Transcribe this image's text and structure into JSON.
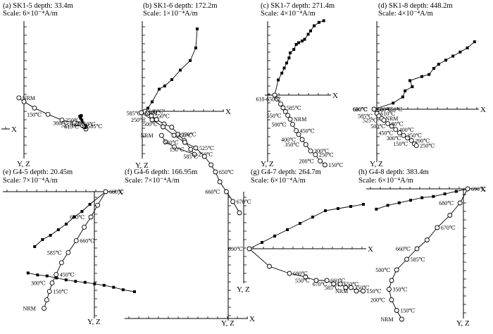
{
  "figure": {
    "description_label": "Orthogonal vector (Zijderveld) diagrams of thermal demagnetization",
    "axis_x": "X",
    "axis_yz": "Y, Z"
  },
  "chart_data": [
    {
      "type": "scatter",
      "panel": "(a)",
      "title": "(a) SK1-5 depth: 33.4m",
      "scale": "Scale: 6×10⁻⁴A/m",
      "xlabel": "X",
      "ylabel": "Y, Z",
      "horizontal_projection": [
        [
          0.0,
          0.0
        ],
        [
          0.06,
          0.18
        ],
        [
          0.16,
          0.3
        ],
        [
          0.3,
          0.45
        ],
        [
          0.38,
          0.65
        ],
        [
          0.49,
          0.8
        ],
        [
          0.44,
          1.0
        ],
        [
          0.58,
          0.95
        ]
      ],
      "vertical_projection": [
        [
          0.0,
          0.0
        ],
        [
          0.05,
          0.55
        ],
        [
          0.13,
          0.6
        ],
        [
          0.19,
          0.63
        ],
        [
          0.23,
          0.66
        ],
        [
          0.28,
          0.7
        ],
        [
          0.38,
          0.9
        ],
        [
          0.72,
          1.2
        ],
        [
          0.89,
          1.2
        ],
        [
          1.0,
          1.3
        ],
        [
          1.19,
          1.45
        ],
        [
          2.43,
          2.1
        ],
        [
          3.85,
          3.45
        ],
        [
          5.22,
          4.95
        ],
        [
          6.28,
          6.45
        ],
        [
          6.8,
          7.35
        ]
      ],
      "temperature_labels": [
        {
          "label": "NRM",
          "index": 15
        },
        {
          "label": "150℃",
          "index": 12
        },
        {
          "label": "250℃",
          "index": 11
        },
        {
          "label": "300℃",
          "index": 10
        },
        {
          "label": "450℃",
          "index": 8
        },
        {
          "label": "525℃",
          "index": 6
        },
        {
          "label": "585℃",
          "index": 3
        },
        {
          "label": "610℃",
          "index": 1
        }
      ]
    },
    {
      "type": "scatter",
      "panel": "(b)",
      "title": "(b) SK1-6 depth: 172.2m",
      "scale": "Scale: 1×10⁻⁴A/m",
      "xlabel": "X",
      "ylabel": "Y, Z",
      "horizontal_projection": [
        [
          0.0,
          0.0
        ],
        [
          0.2,
          0.1
        ],
        [
          0.5,
          0.3
        ],
        [
          1.0,
          0.7
        ],
        [
          1.4,
          0.8
        ],
        [
          1.9,
          1.0
        ],
        [
          2.5,
          1.3
        ],
        [
          3.2,
          1.6
        ],
        [
          3.6,
          2.0
        ],
        [
          3.7,
          2.6
        ]
      ],
      "vertical_projection": [
        [
          0.0,
          0.0
        ],
        [
          0.2,
          0.3
        ],
        [
          0.5,
          0.7
        ],
        [
          0.9,
          1.3
        ],
        [
          1.5,
          2.0
        ],
        [
          2.1,
          2.5
        ],
        [
          2.6,
          3.6
        ],
        [
          3.1,
          4.6
        ],
        [
          3.6,
          6.0
        ],
        [
          3.9,
          6.8
        ],
        [
          2.3,
          5.6
        ],
        [
          1.6,
          4.8
        ],
        [
          1.3,
          3.8
        ]
      ],
      "temperature_labels": [
        {
          "label": "250℃",
          "index": 9
        },
        {
          "label": "150℃",
          "index": 8
        },
        {
          "label": "350℃",
          "index": 6
        },
        {
          "label": "500℃",
          "index": 4
        },
        {
          "label": "550℃",
          "index": 2
        },
        {
          "label": "585℃",
          "index": 1
        },
        {
          "label": "610℃",
          "index": 0
        },
        {
          "label": "NRM",
          "index": 12
        }
      ]
    },
    {
      "type": "scatter",
      "panel": "(c)",
      "title": "(c) SK1-7 depth: 271.4m",
      "scale": "Scale: 4×10⁻⁴A/m",
      "xlabel": "X",
      "ylabel": "Y, Z",
      "horizontal_projection": [
        [
          0.0,
          0.0
        ],
        [
          0.3,
          0.9
        ],
        [
          0.6,
          1.3
        ],
        [
          0.8,
          1.6
        ],
        [
          1.0,
          1.9
        ],
        [
          1.2,
          2.2
        ],
        [
          1.3,
          2.5
        ],
        [
          1.6,
          2.7
        ],
        [
          1.8,
          3.0
        ],
        [
          2.0,
          3.1
        ],
        [
          2.3,
          3.2
        ],
        [
          2.5,
          3.3
        ],
        [
          2.8,
          3.6
        ],
        [
          3.0,
          3.8
        ],
        [
          3.3,
          4.1
        ],
        [
          3.7,
          4.3
        ],
        [
          4.1,
          4.4
        ]
      ],
      "vertical_projection": [
        [
          0.0,
          0.0
        ],
        [
          0.2,
          0.3
        ],
        [
          0.5,
          0.7
        ],
        [
          0.7,
          1.0
        ],
        [
          0.9,
          1.3
        ],
        [
          1.1,
          1.6
        ],
        [
          1.3,
          1.9
        ],
        [
          1.5,
          2.3
        ],
        [
          1.8,
          2.8
        ],
        [
          2.0,
          3.1
        ],
        [
          2.3,
          3.5
        ],
        [
          2.6,
          3.9
        ],
        [
          3.0,
          4.4
        ],
        [
          3.4,
          4.7
        ],
        [
          3.8,
          5.2
        ],
        [
          4.2,
          5.5
        ]
      ],
      "temperature_labels": [
        {
          "label": "150℃",
          "index": 15
        },
        {
          "label": "200℃",
          "index": 14
        },
        {
          "label": "250℃",
          "index": 13
        },
        {
          "label": "350℃",
          "index": 11
        },
        {
          "label": "300℃",
          "index": 12
        },
        {
          "label": "400℃",
          "index": 10
        },
        {
          "label": "450℃",
          "index": 8
        },
        {
          "label": "500℃",
          "index": 7
        },
        {
          "label": "NRM",
          "index": 6
        },
        {
          "label": "550℃",
          "index": 5
        },
        {
          "label": "585℃",
          "index": 3
        },
        {
          "label": "610-650℃",
          "index": 1
        }
      ]
    },
    {
      "type": "scatter",
      "panel": "(d)",
      "title": "(d) SK1-8 depth: 448.2m",
      "scale": "Scale: 4×10⁻⁴A/m",
      "xlabel": "X",
      "ylabel": "Y, Z",
      "horizontal_projection": [
        [
          0.0,
          0.0
        ],
        [
          0.8,
          0.3
        ],
        [
          1.2,
          0.6
        ],
        [
          1.3,
          0.9
        ],
        [
          1.6,
          1.1
        ],
        [
          1.5,
          1.4
        ],
        [
          2.0,
          1.6
        ],
        [
          2.3,
          1.7
        ],
        [
          2.5,
          2.0
        ],
        [
          2.7,
          2.2
        ],
        [
          3.0,
          2.4
        ],
        [
          3.3,
          2.6
        ],
        [
          3.6,
          2.8
        ],
        [
          3.9,
          3.0
        ],
        [
          4.2,
          3.3
        ]
      ],
      "vertical_projection": [
        [
          0.0,
          0.0
        ],
        [
          0.3,
          0.5
        ],
        [
          0.5,
          0.8
        ],
        [
          0.8,
          1.1
        ],
        [
          1.0,
          1.3
        ],
        [
          1.4,
          1.7
        ],
        [
          1.8,
          2.0
        ],
        [
          2.2,
          2.4
        ],
        [
          2.6,
          2.8
        ],
        [
          3.0,
          3.1
        ],
        [
          3.4,
          3.4
        ],
        [
          3.8,
          3.7
        ],
        [
          4.1,
          4.1
        ],
        [
          4.3,
          4.3
        ]
      ],
      "temperature_labels": [
        {
          "label": "250℃",
          "index": 13
        },
        {
          "label": "150℃",
          "index": 12
        },
        {
          "label": "200℃",
          "index": 11
        },
        {
          "label": "300℃",
          "index": 10
        },
        {
          "label": "350℃",
          "index": 9
        },
        {
          "label": "450℃",
          "index": 8
        },
        {
          "label": "400℃",
          "index": 7
        },
        {
          "label": "500℃",
          "index": 6
        },
        {
          "label": "80℃",
          "index": 5
        },
        {
          "label": "525℃",
          "index": 4
        },
        {
          "label": "NRM",
          "index": 3
        },
        {
          "label": "585℃",
          "index": 2
        },
        {
          "label": "610℃",
          "index": 1
        },
        {
          "label": "660℃",
          "index": 0
        },
        {
          "label": "620-650℃",
          "index": 0
        },
        {
          "label": "670℃",
          "index": 0
        },
        {
          "label": "680℃",
          "index": 0
        },
        {
          "label": "690℃",
          "index": 0
        }
      ]
    },
    {
      "type": "scatter",
      "panel": "(e)",
      "title": "(e) G4-5 depth: 20.45m",
      "scale": "Scale: 7×10⁻⁴A/m",
      "xlabel": "X",
      "ylabel": "Y, Z",
      "horizontal_projection": [
        [
          0.0,
          0.0
        ],
        [
          0.8,
          0.9
        ],
        [
          1.2,
          1.4
        ],
        [
          1.6,
          1.8
        ],
        [
          2.0,
          2.3
        ],
        [
          2.4,
          2.7
        ],
        [
          2.8,
          3.1
        ],
        [
          3.2,
          3.4
        ],
        [
          3.6,
          3.9
        ]
      ],
      "vertical_projection": [
        [
          0.0,
          0.0
        ],
        [
          0.6,
          0.8
        ],
        [
          1.1,
          1.5
        ],
        [
          1.6,
          2.1
        ],
        [
          2.2,
          2.9
        ],
        [
          2.8,
          3.6
        ],
        [
          3.3,
          4.2
        ],
        [
          3.7,
          4.9
        ],
        [
          4.0,
          5.4
        ],
        [
          4.2,
          5.9
        ],
        [
          4.4,
          6.4
        ],
        [
          4.6,
          6.9
        ]
      ],
      "temperature_labels": [
        {
          "label": "680℃",
          "index": 0
        },
        {
          "label": "670℃",
          "index": 2
        },
        {
          "label": "660℃",
          "index": 4
        },
        {
          "label": "585℃",
          "index": 5
        },
        {
          "label": "450℃",
          "index": 7
        },
        {
          "label": "300℃",
          "index": 8
        },
        {
          "label": "150℃",
          "index": 9
        },
        {
          "label": "NRM",
          "index": 11
        }
      ]
    },
    {
      "type": "scatter",
      "panel": "(f)",
      "title": "(f) G4-6 depth: 166.95m",
      "scale": "Scale: 7×10⁻⁴A/m",
      "xlabel": "X",
      "ylabel": "Y, Z",
      "horizontal_projection": [
        [
          0.0,
          0.0
        ],
        [
          0.6,
          0.4
        ],
        [
          1.1,
          0.9
        ],
        [
          1.6,
          1.3
        ],
        [
          2.1,
          1.6
        ],
        [
          2.6,
          1.9
        ],
        [
          3.1,
          2.1
        ],
        [
          3.6,
          2.4
        ],
        [
          4.1,
          2.8
        ],
        [
          4.6,
          3.2
        ],
        [
          5.1,
          3.4
        ],
        [
          5.6,
          3.8
        ]
      ],
      "vertical_projection": [
        [
          0.0,
          0.0
        ],
        [
          0.3,
          0.8
        ],
        [
          0.6,
          1.5
        ],
        [
          0.9,
          2.2
        ],
        [
          1.1,
          2.9
        ],
        [
          1.3,
          3.4
        ],
        [
          1.6,
          4.0
        ],
        [
          2.0,
          4.6
        ],
        [
          2.5,
          5.0
        ],
        [
          3.0,
          5.5
        ],
        [
          3.5,
          6.1
        ],
        [
          4.0,
          6.6
        ],
        [
          4.5,
          7.1
        ]
      ],
      "temperature_labels": [
        {
          "label": "NRM",
          "index": 12
        },
        {
          "label": "250℃",
          "index": 11
        },
        {
          "label": "350℃",
          "index": 9
        },
        {
          "label": "500℃",
          "index": 8
        },
        {
          "label": "525℃",
          "index": 7
        },
        {
          "label": "585℃",
          "index": 6
        },
        {
          "label": "650℃",
          "index": 4
        },
        {
          "label": "660℃",
          "index": 2
        },
        {
          "label": "670℃",
          "index": 1
        }
      ]
    },
    {
      "type": "scatter",
      "panel": "(g)",
      "title": "(g) G4-7 depth: 264.7m",
      "scale": "Scale: 6×10⁻⁴A/m",
      "xlabel": "X",
      "ylabel": "Y, Z",
      "horizontal_projection": [
        [
          0.0,
          0.0
        ],
        [
          1.0,
          0.3
        ],
        [
          2.0,
          0.6
        ],
        [
          3.0,
          0.9
        ],
        [
          4.0,
          1.2
        ],
        [
          5.0,
          1.5
        ],
        [
          6.0,
          1.8
        ],
        [
          7.0,
          1.9
        ],
        [
          8.0,
          2.0
        ],
        [
          9.0,
          2.1
        ]
      ],
      "vertical_projection": [
        [
          0.0,
          0.0
        ],
        [
          1.5,
          0.5
        ],
        [
          3.0,
          0.7
        ],
        [
          4.2,
          0.8
        ],
        [
          5.0,
          0.9
        ],
        [
          5.8,
          0.9
        ],
        [
          6.3,
          1.0
        ],
        [
          6.8,
          1.0
        ],
        [
          7.2,
          1.1
        ],
        [
          7.6,
          1.1
        ],
        [
          8.0,
          1.2
        ],
        [
          8.5,
          1.2
        ]
      ],
      "temperature_labels": [
        {
          "label": "150℃",
          "index": 11
        },
        {
          "label": "NRM",
          "index": 10
        },
        {
          "label": "350℃",
          "index": 9
        },
        {
          "label": "585℃",
          "index": 8
        },
        {
          "label": "650℃",
          "index": 7
        },
        {
          "label": "670℃",
          "index": 6
        },
        {
          "label": "660℃",
          "index": 5
        },
        {
          "label": "550℃",
          "index": 4
        },
        {
          "label": "680℃",
          "index": 2
        },
        {
          "label": "690℃",
          "index": 0
        }
      ]
    },
    {
      "type": "scatter",
      "panel": "(h)",
      "title": "(h) G4-8 depth: 383.4m",
      "scale": "Scale: 6×10⁻⁴A/m",
      "xlabel": "X",
      "ylabel": "Y, Z",
      "horizontal_projection": [
        [
          0.0,
          0.0
        ],
        [
          0.6,
          0.2
        ],
        [
          1.2,
          0.4
        ],
        [
          1.8,
          0.6
        ],
        [
          2.4,
          0.7
        ],
        [
          3.0,
          0.9
        ],
        [
          3.6,
          1.1
        ],
        [
          4.2,
          1.3
        ],
        [
          4.8,
          1.6
        ]
      ],
      "vertical_projection": [
        [
          0.0,
          0.0
        ],
        [
          0.3,
          0.8
        ],
        [
          0.7,
          1.5
        ],
        [
          1.2,
          2.2
        ],
        [
          1.6,
          2.9
        ],
        [
          2.0,
          3.4
        ],
        [
          2.4,
          4.0
        ],
        [
          2.8,
          4.6
        ],
        [
          3.0,
          5.2
        ],
        [
          3.1,
          5.7
        ],
        [
          3.0,
          6.3
        ],
        [
          2.8,
          6.9
        ],
        [
          2.6,
          7.4
        ]
      ],
      "temperature_labels": [
        {
          "label": "690℃",
          "index": 0
        },
        {
          "label": "680℃",
          "index": 1
        },
        {
          "label": "670℃",
          "index": 3
        },
        {
          "label": "660℃",
          "index": 5
        },
        {
          "label": "585℃",
          "index": 6
        },
        {
          "label": "500℃",
          "index": 7
        },
        {
          "label": "350℃",
          "index": 9
        },
        {
          "label": "200℃",
          "index": 10
        },
        {
          "label": "150℃",
          "index": 11
        },
        {
          "label": "NRM",
          "index": 12
        }
      ]
    }
  ]
}
